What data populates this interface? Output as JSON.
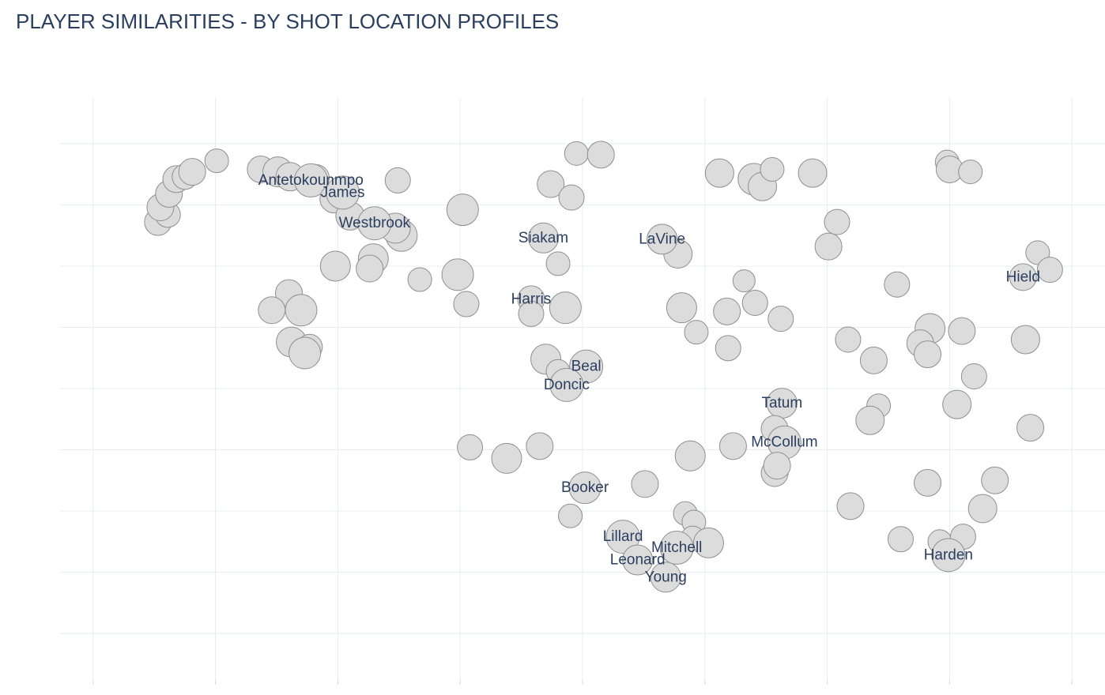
{
  "chart_data": {
    "type": "scatter",
    "title": "PLAYER SIMILARITIES - BY SHOT LOCATION PROFILES",
    "xlim": [
      -4.27,
      4.27
    ],
    "ylim": [
      -2.38,
      2.38
    ],
    "x_gridlines": [
      -4,
      -3,
      -2,
      -1,
      0,
      1,
      2,
      3,
      4
    ],
    "y_gridlines": [
      -2,
      -1.5,
      -1,
      -0.5,
      0,
      0.5,
      1,
      1.5,
      2
    ],
    "grid": true,
    "axis_tick_labels_visible": false,
    "marker_color": "#dcdcdc",
    "marker_edge_color": "#8f8f8f",
    "label_color": "#2a3f5f",
    "points": [
      {
        "x": -3.47,
        "y": 1.36,
        "size": 17
      },
      {
        "x": -3.39,
        "y": 1.42,
        "size": 16
      },
      {
        "x": -3.45,
        "y": 1.48,
        "size": 17
      },
      {
        "x": -3.38,
        "y": 1.59,
        "size": 17
      },
      {
        "x": -3.32,
        "y": 1.71,
        "size": 17
      },
      {
        "x": -3.25,
        "y": 1.73,
        "size": 16
      },
      {
        "x": -3.19,
        "y": 1.77,
        "size": 17
      },
      {
        "x": -2.99,
        "y": 1.86,
        "size": 15
      },
      {
        "x": -2.63,
        "y": 1.79,
        "size": 17
      },
      {
        "x": -2.49,
        "y": 1.77,
        "size": 19
      },
      {
        "x": -2.39,
        "y": 1.73,
        "size": 18
      },
      {
        "x": -2.18,
        "y": 1.72,
        "size": 17
      },
      {
        "x": -2.22,
        "y": 1.7,
        "size": 21,
        "label": "Antetokounmpo"
      },
      {
        "x": -2.03,
        "y": 1.55,
        "size": 18
      },
      {
        "x": -1.9,
        "y": 1.41,
        "size": 18
      },
      {
        "x": -1.71,
        "y": 1.06,
        "size": 19
      },
      {
        "x": -1.74,
        "y": 0.98,
        "size": 17
      },
      {
        "x": -1.96,
        "y": 1.6,
        "size": 21,
        "label": "James"
      },
      {
        "x": -1.51,
        "y": 1.7,
        "size": 16
      },
      {
        "x": -1.48,
        "y": 1.25,
        "size": 20
      },
      {
        "x": -1.53,
        "y": 1.31,
        "size": 19
      },
      {
        "x": -1.7,
        "y": 1.35,
        "size": 21,
        "label": "Westbrook"
      },
      {
        "x": -2.02,
        "y": 1.0,
        "size": 19
      },
      {
        "x": -2.4,
        "y": 0.78,
        "size": 17
      },
      {
        "x": -2.54,
        "y": 0.64,
        "size": 17
      },
      {
        "x": -2.3,
        "y": 0.64,
        "size": 20
      },
      {
        "x": -2.38,
        "y": 0.38,
        "size": 19
      },
      {
        "x": -2.23,
        "y": 0.34,
        "size": 16
      },
      {
        "x": -2.27,
        "y": 0.29,
        "size": 20
      },
      {
        "x": -1.33,
        "y": 0.89,
        "size": 15
      },
      {
        "x": -1.02,
        "y": 0.93,
        "size": 20
      },
      {
        "x": -0.95,
        "y": 0.69,
        "size": 16
      },
      {
        "x": -0.98,
        "y": 1.46,
        "size": 20
      },
      {
        "x": -0.42,
        "y": 0.73,
        "size": 17,
        "label": "Harris"
      },
      {
        "x": -0.42,
        "y": 0.61,
        "size": 16
      },
      {
        "x": -0.14,
        "y": 0.66,
        "size": 20
      },
      {
        "x": -0.26,
        "y": 1.67,
        "size": 17
      },
      {
        "x": -0.09,
        "y": 1.56,
        "size": 16
      },
      {
        "x": -0.05,
        "y": 1.92,
        "size": 15
      },
      {
        "x": 0.15,
        "y": 1.91,
        "size": 17
      },
      {
        "x": -0.32,
        "y": 1.23,
        "size": 19,
        "label": "Siakam"
      },
      {
        "x": -0.2,
        "y": 1.02,
        "size": 15
      },
      {
        "x": -0.3,
        "y": 0.24,
        "size": 19
      },
      {
        "x": -0.2,
        "y": 0.14,
        "size": 15
      },
      {
        "x": 0.03,
        "y": 0.18,
        "size": 21,
        "label": "Beal"
      },
      {
        "x": -0.13,
        "y": 0.03,
        "size": 21,
        "label": "Doncic"
      },
      {
        "x": 0.78,
        "y": 1.1,
        "size": 18
      },
      {
        "x": 0.65,
        "y": 1.22,
        "size": 19,
        "label": "LaVine"
      },
      {
        "x": 1.12,
        "y": 1.76,
        "size": 18
      },
      {
        "x": 1.4,
        "y": 1.71,
        "size": 20
      },
      {
        "x": 1.47,
        "y": 1.65,
        "size": 18
      },
      {
        "x": 1.55,
        "y": 1.79,
        "size": 15
      },
      {
        "x": 1.88,
        "y": 1.76,
        "size": 18
      },
      {
        "x": 2.08,
        "y": 1.36,
        "size": 16
      },
      {
        "x": 2.01,
        "y": 1.16,
        "size": 17
      },
      {
        "x": 2.98,
        "y": 1.85,
        "size": 15
      },
      {
        "x": 3.0,
        "y": 1.79,
        "size": 17
      },
      {
        "x": 3.17,
        "y": 1.77,
        "size": 15
      },
      {
        "x": 3.72,
        "y": 1.11,
        "size": 15
      },
      {
        "x": 3.82,
        "y": 0.97,
        "size": 16
      },
      {
        "x": 1.32,
        "y": 0.88,
        "size": 14
      },
      {
        "x": 1.18,
        "y": 0.63,
        "size": 17
      },
      {
        "x": 0.93,
        "y": 0.46,
        "size": 15
      },
      {
        "x": 0.81,
        "y": 0.66,
        "size": 19
      },
      {
        "x": 1.41,
        "y": 0.7,
        "size": 16
      },
      {
        "x": 1.19,
        "y": 0.33,
        "size": 16
      },
      {
        "x": 1.62,
        "y": 0.57,
        "size": 16
      },
      {
        "x": 2.17,
        "y": 0.4,
        "size": 16
      },
      {
        "x": 2.38,
        "y": 0.23,
        "size": 17
      },
      {
        "x": 2.57,
        "y": 0.85,
        "size": 16
      },
      {
        "x": 2.84,
        "y": 0.49,
        "size": 19
      },
      {
        "x": 3.1,
        "y": 0.47,
        "size": 17
      },
      {
        "x": 3.6,
        "y": 0.91,
        "size": 17,
        "label": "Hield"
      },
      {
        "x": 3.62,
        "y": 0.4,
        "size": 18
      },
      {
        "x": 2.76,
        "y": 0.37,
        "size": 17
      },
      {
        "x": 2.82,
        "y": 0.28,
        "size": 17
      },
      {
        "x": 3.2,
        "y": 0.1,
        "size": 16
      },
      {
        "x": 1.63,
        "y": -0.12,
        "size": 19,
        "label": "Tatum"
      },
      {
        "x": 2.42,
        "y": -0.14,
        "size": 15
      },
      {
        "x": 2.35,
        "y": -0.26,
        "size": 18
      },
      {
        "x": 3.06,
        "y": -0.13,
        "size": 18
      },
      {
        "x": 3.66,
        "y": -0.32,
        "size": 17
      },
      {
        "x": 1.57,
        "y": -0.33,
        "size": 17
      },
      {
        "x": 1.65,
        "y": -0.44,
        "size": 21,
        "label": "McCollum"
      },
      {
        "x": 0.88,
        "y": -0.55,
        "size": 19
      },
      {
        "x": 1.23,
        "y": -0.47,
        "size": 17
      },
      {
        "x": 1.57,
        "y": -0.69,
        "size": 17
      },
      {
        "x": 1.59,
        "y": -0.63,
        "size": 17
      },
      {
        "x": 2.82,
        "y": -0.77,
        "size": 17
      },
      {
        "x": 3.37,
        "y": -0.75,
        "size": 17
      },
      {
        "x": 3.27,
        "y": -0.98,
        "size": 18
      },
      {
        "x": 2.19,
        "y": -0.96,
        "size": 17
      },
      {
        "x": 0.02,
        "y": -0.81,
        "size": 20,
        "label": "Booker"
      },
      {
        "x": 0.51,
        "y": -0.78,
        "size": 17
      },
      {
        "x": -0.1,
        "y": -1.04,
        "size": 15
      },
      {
        "x": 0.84,
        "y": -1.02,
        "size": 15
      },
      {
        "x": -0.35,
        "y": -0.47,
        "size": 17
      },
      {
        "x": -0.62,
        "y": -0.57,
        "size": 19
      },
      {
        "x": -0.92,
        "y": -0.48,
        "size": 16
      },
      {
        "x": 0.91,
        "y": -1.09,
        "size": 15
      },
      {
        "x": 0.9,
        "y": -1.22,
        "size": 15
      },
      {
        "x": 0.33,
        "y": -1.21,
        "size": 21,
        "label": "Lillard"
      },
      {
        "x": 0.45,
        "y": -1.4,
        "size": 19,
        "label": "Leonard"
      },
      {
        "x": 0.77,
        "y": -1.3,
        "size": 21,
        "label": "Mitchell"
      },
      {
        "x": 1.03,
        "y": -1.26,
        "size": 19
      },
      {
        "x": 2.6,
        "y": -1.23,
        "size": 16
      },
      {
        "x": 2.92,
        "y": -1.25,
        "size": 15
      },
      {
        "x": 3.11,
        "y": -1.21,
        "size": 16
      },
      {
        "x": 2.99,
        "y": -1.36,
        "size": 21,
        "label": "Harden"
      },
      {
        "x": 0.68,
        "y": -1.54,
        "size": 19,
        "label": "Young"
      }
    ]
  }
}
